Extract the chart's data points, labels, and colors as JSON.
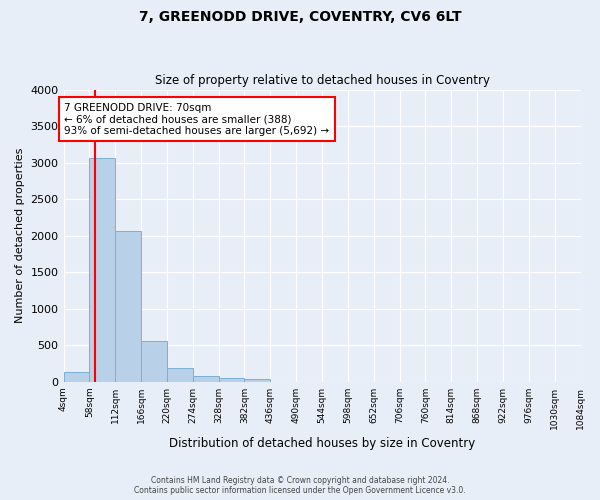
{
  "title": "7, GREENODD DRIVE, COVENTRY, CV6 6LT",
  "subtitle": "Size of property relative to detached houses in Coventry",
  "xlabel": "Distribution of detached houses by size in Coventry",
  "ylabel": "Number of detached properties",
  "footer_line1": "Contains HM Land Registry data © Crown copyright and database right 2024.",
  "footer_line2": "Contains public sector information licensed under the Open Government Licence v3.0.",
  "annotation_line1": "7 GREENODD DRIVE: 70sqm",
  "annotation_line2": "← 6% of detached houses are smaller (388)",
  "annotation_line3": "93% of semi-detached houses are larger (5,692) →",
  "bar_color": "#b8d0e8",
  "bar_edge_color": "#7aafd4",
  "background_color": "#e8eef8",
  "bin_edges": [
    4,
    58,
    112,
    166,
    220,
    274,
    328,
    382,
    436,
    490,
    544,
    598,
    652,
    706,
    760,
    814,
    868,
    922,
    976,
    1030,
    1084
  ],
  "bar_heights": [
    130,
    3060,
    2060,
    555,
    185,
    75,
    55,
    35,
    0,
    0,
    0,
    0,
    0,
    0,
    0,
    0,
    0,
    0,
    0,
    0
  ],
  "property_size": 70,
  "ylim": [
    0,
    4000
  ],
  "yticks": [
    0,
    500,
    1000,
    1500,
    2000,
    2500,
    3000,
    3500,
    4000
  ]
}
